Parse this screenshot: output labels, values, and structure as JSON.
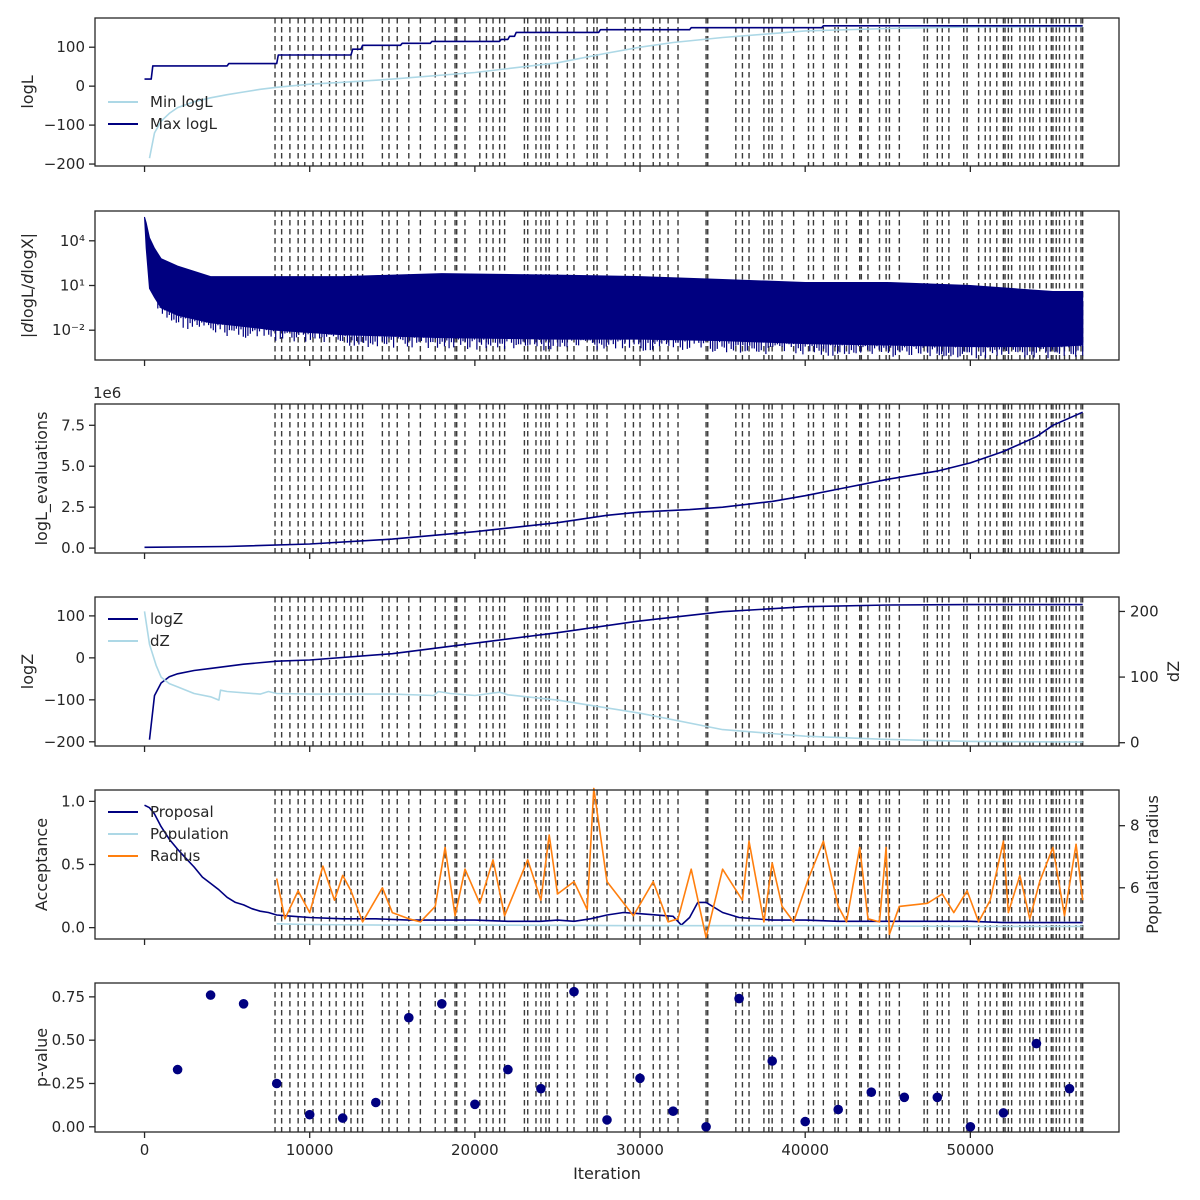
{
  "chart_data": {
    "type": "line",
    "x_label": "Iteration",
    "x_range": [
      -3000,
      59000
    ],
    "x_ticks": [
      0,
      10000,
      20000,
      30000,
      40000,
      50000
    ],
    "x_tick_labels": [
      "0",
      "10000",
      "20000",
      "30000",
      "40000",
      "50000"
    ],
    "grid": false,
    "colors": {
      "navy": "#000080",
      "light_blue": "#add8e6",
      "orange": "#ff7f0e",
      "vline": "#3a3a3a",
      "axis": "#262626"
    },
    "vlines": [
      7900,
      8300,
      8800,
      9300,
      9700,
      10200,
      10700,
      11200,
      11600,
      12100,
      12500,
      12900,
      13200,
      14400,
      14800,
      15300,
      16000,
      16700,
      17600,
      18200,
      18800,
      18900,
      19400,
      20300,
      20700,
      21100,
      21500,
      21800,
      23000,
      23200,
      23700,
      24000,
      24300,
      24500,
      25000,
      25600,
      26000,
      26800,
      27200,
      27400,
      28000,
      29100,
      29600,
      30000,
      30800,
      31200,
      31700,
      32300,
      34000,
      34100,
      35800,
      36200,
      36600,
      37500,
      37800,
      38000,
      38600,
      39300,
      40200,
      40500,
      41100,
      41800,
      42000,
      42500,
      43300,
      43400,
      43800,
      44500,
      44900,
      45100,
      45700,
      47200,
      47400,
      48000,
      48300,
      48700,
      49600,
      49800,
      50500,
      50900,
      51200,
      51600,
      52000,
      52100,
      52300,
      52500,
      53000,
      53300,
      53600,
      53800,
      54200,
      54600,
      54900,
      55000,
      55200,
      55400,
      55700,
      56000,
      56400,
      56700,
      56800
    ],
    "panels": [
      {
        "name": "logl",
        "ylabel": "logL",
        "y_range": [
          -205,
          175
        ],
        "y_ticks": [
          -200,
          -100,
          0,
          100
        ],
        "y_tick_labels": [
          "−200",
          "−100",
          "0",
          "100"
        ],
        "legend": {
          "position": "lower-left",
          "entries": [
            "Min logL",
            "Max logL"
          ]
        },
        "series": [
          {
            "name": "Min logL",
            "color_key": "light_blue",
            "x": [
              300,
              600,
              1000,
              1500,
              2000,
              3000,
              4000,
              5000,
              6000,
              7000,
              8000,
              10000,
              12000,
              15000,
              20000,
              25000,
              28000,
              30000,
              32000,
              35000,
              38000,
              40000,
              45000,
              50000,
              55000,
              56800
            ],
            "y": [
              -185,
              -120,
              -90,
              -70,
              -55,
              -40,
              -30,
              -22,
              -15,
              -8,
              -3,
              5,
              10,
              18,
              35,
              60,
              85,
              100,
              112,
              125,
              135,
              142,
              148,
              152,
              153,
              153
            ]
          },
          {
            "name": "Max logL",
            "color_key": "navy",
            "x": [
              0,
              400,
              500,
              5000,
              5100,
              8000,
              8100,
              12500,
              12600,
              13100,
              13200,
              15500,
              15600,
              17300,
              17400,
              21500,
              21600,
              22000,
              22100,
              22400,
              22500,
              27500,
              27600,
              33000,
              33100,
              41000,
              41100,
              56800
            ],
            "y": [
              18,
              18,
              52,
              52,
              58,
              58,
              80,
              80,
              95,
              95,
              105,
              105,
              110,
              110,
              115,
              115,
              120,
              120,
              128,
              128,
              138,
              138,
              145,
              145,
              150,
              150,
              155,
              155
            ]
          }
        ]
      },
      {
        "name": "dlogl",
        "ylabel": "|dlogL/dlogX|",
        "scale": "log",
        "y_range_log10": [
          -4.0,
          6.0
        ],
        "y_ticks_log10": [
          -2,
          1,
          4
        ],
        "y_tick_labels": [
          "10⁻²",
          "10¹",
          "10⁴"
        ],
        "series": [
          {
            "name": "|dlogL/dlogX| upper envelope",
            "color_key": "navy",
            "x": [
              0,
              100,
              300,
              600,
              1000,
              2000,
              4000,
              8000,
              12000,
              18000,
              25000,
              30000,
              35000,
              40000,
              45000,
              50000,
              55000,
              56800
            ],
            "y_log10": [
              5.6,
              5.2,
              4.2,
              3.5,
              2.8,
              2.3,
              1.6,
              1.6,
              1.6,
              1.8,
              1.7,
              1.6,
              1.4,
              1.2,
              1.2,
              1.0,
              0.6,
              0.6
            ]
          },
          {
            "name": "|dlogL/dlogX| lower envelope",
            "color_key": "navy",
            "x": [
              0,
              100,
              300,
              600,
              1000,
              2000,
              4000,
              8000,
              12000,
              18000,
              25000,
              30000,
              35000,
              40000,
              45000,
              50000,
              55000,
              56800
            ],
            "y_log10": [
              5.6,
              3.5,
              0.8,
              0.2,
              -0.5,
              -1.0,
              -1.5,
              -2.0,
              -2.3,
              -2.5,
              -2.6,
              -2.6,
              -2.7,
              -2.9,
              -3.0,
              -3.1,
              -3.1,
              -3.0
            ]
          }
        ]
      },
      {
        "name": "evals",
        "ylabel": "logL_evaluations",
        "offset_text": "1e6",
        "y_range": [
          -0.3,
          8.8
        ],
        "y_ticks": [
          0.0,
          2.5,
          5.0,
          7.5
        ],
        "y_tick_labels": [
          "0.0",
          "2.5",
          "5.0",
          "7.5"
        ],
        "series": [
          {
            "name": "logL_evaluations",
            "color_key": "navy",
            "x": [
              0,
              5000,
              10000,
              15000,
              20000,
              25000,
              28000,
              30000,
              33000,
              35000,
              38000,
              40000,
              42000,
              45000,
              48000,
              50000,
              52000,
              54000,
              55000,
              56800
            ],
            "y": [
              0.05,
              0.1,
              0.25,
              0.55,
              1.0,
              1.55,
              2.0,
              2.2,
              2.35,
              2.5,
              2.85,
              3.2,
              3.6,
              4.2,
              4.7,
              5.2,
              5.9,
              6.8,
              7.5,
              8.3
            ]
          }
        ]
      },
      {
        "name": "logz",
        "ylabel": "logZ",
        "y_range": [
          -210,
          145
        ],
        "y_ticks": [
          -200,
          -100,
          0,
          100
        ],
        "y_tick_labels": [
          "−200",
          "−100",
          "0",
          "100"
        ],
        "ylabel_right": "dZ",
        "y2_range": [
          -5,
          222
        ],
        "y2_ticks": [
          0,
          100,
          200
        ],
        "y2_tick_labels": [
          "0",
          "100",
          "200"
        ],
        "legend": {
          "position": "top-left",
          "entries": [
            "logZ",
            "dZ"
          ]
        },
        "series": [
          {
            "name": "logZ",
            "color_key": "navy",
            "axis": "left",
            "x": [
              300,
              600,
              1000,
              1500,
              2000,
              3000,
              4000,
              6000,
              8000,
              10000,
              15000,
              20000,
              25000,
              30000,
              35000,
              40000,
              45000,
              50000,
              56800
            ],
            "y": [
              -195,
              -90,
              -60,
              -45,
              -38,
              -30,
              -25,
              -15,
              -8,
              -5,
              10,
              35,
              60,
              88,
              110,
              122,
              126,
              127,
              127
            ]
          },
          {
            "name": "dZ",
            "color_key": "light_blue",
            "axis": "right",
            "x": [
              0,
              300,
              700,
              1000,
              1500,
              2000,
              3000,
              4000,
              4500,
              4600,
              5000,
              7000,
              7500,
              8000,
              10000,
              15000,
              17500,
              17800,
              18500,
              20000,
              21500,
              22000,
              25000,
              30000,
              35000,
              40000,
              45000,
              50000,
              56800
            ],
            "y": [
              200,
              150,
              118,
              100,
              90,
              85,
              75,
              70,
              65,
              80,
              78,
              74,
              78,
              75,
              74,
              74,
              72,
              78,
              75,
              72,
              77,
              73,
              65,
              45,
              20,
              10,
              5,
              2,
              1
            ]
          }
        ]
      },
      {
        "name": "acceptance",
        "ylabel": "Acceptance",
        "y_range": [
          -0.09,
          1.09
        ],
        "y_ticks": [
          0.0,
          0.5,
          1.0
        ],
        "y_tick_labels": [
          "0.0",
          "0.5",
          "1.0"
        ],
        "ylabel_right": "Population radius",
        "y2_range": [
          4.35,
          9.15
        ],
        "y2_ticks": [
          6,
          8
        ],
        "y2_tick_labels": [
          "6",
          "8"
        ],
        "legend": {
          "position": "top-left",
          "entries": [
            "Proposal",
            "Population",
            "Radius"
          ]
        },
        "series": [
          {
            "name": "Proposal",
            "color_key": "navy",
            "axis": "left",
            "x": [
              0,
              300,
              600,
              1000,
              1500,
              2000,
              2500,
              3000,
              3500,
              4000,
              4500,
              5000,
              5500,
              6000,
              6500,
              7000,
              7500,
              8000,
              9000,
              10000,
              12000,
              14000,
              16000,
              18000,
              20000,
              22000,
              24000,
              25000,
              26000,
              27000,
              28000,
              29000,
              30000,
              32000,
              32500,
              33000,
              33500,
              34000,
              35000,
              36000,
              38000,
              40000,
              42000,
              45000,
              48000,
              50000,
              52000,
              54000,
              56800
            ],
            "y": [
              0.97,
              0.95,
              0.9,
              0.8,
              0.7,
              0.62,
              0.55,
              0.48,
              0.4,
              0.35,
              0.3,
              0.24,
              0.2,
              0.18,
              0.15,
              0.13,
              0.12,
              0.1,
              0.09,
              0.08,
              0.07,
              0.07,
              0.06,
              0.06,
              0.06,
              0.05,
              0.05,
              0.06,
              0.05,
              0.07,
              0.1,
              0.12,
              0.11,
              0.09,
              0.02,
              0.08,
              0.2,
              0.2,
              0.12,
              0.08,
              0.06,
              0.06,
              0.05,
              0.05,
              0.05,
              0.05,
              0.04,
              0.04,
              0.04
            ]
          },
          {
            "name": "Population",
            "color_key": "light_blue",
            "axis": "left",
            "x": [
              8000,
              10000,
              15000,
              20000,
              30000,
              40000,
              50000,
              56800
            ],
            "y": [
              0.03,
              0.025,
              0.02,
              0.02,
              0.015,
              0.015,
              0.01,
              0.01
            ]
          },
          {
            "name": "Radius",
            "color_key": "orange",
            "axis": "right",
            "x": [
              8000,
              8500,
              9300,
              10000,
              10800,
              11500,
              12000,
              12500,
              13200,
              14400,
              15000,
              16000,
              16700,
              17600,
              18200,
              18800,
              19400,
              20300,
              21100,
              21800,
              23200,
              24000,
              24500,
              25000,
              26000,
              26800,
              27200,
              28000,
              29600,
              30800,
              31700,
              32300,
              33100,
              34000,
              35000,
              36200,
              36600,
              37500,
              38000,
              38600,
              39300,
              40200,
              41100,
              42000,
              42500,
              43300,
              43800,
              44500,
              44900,
              45100,
              45700,
              47400,
              48300,
              49000,
              49800,
              50500,
              51200,
              52000,
              52300,
              53000,
              53600,
              54200,
              55000,
              55700,
              56400,
              56800
            ],
            "y": [
              6.3,
              5.0,
              5.9,
              5.2,
              6.7,
              5.6,
              6.4,
              5.9,
              4.9,
              6.0,
              5.2,
              5.0,
              4.9,
              5.4,
              7.3,
              5.1,
              6.6,
              5.5,
              6.9,
              5.1,
              6.9,
              5.6,
              7.7,
              5.8,
              6.2,
              5.3,
              9.2,
              6.2,
              5.1,
              6.2,
              4.9,
              5.0,
              6.6,
              4.4,
              6.6,
              5.6,
              7.5,
              4.9,
              6.8,
              5.4,
              4.9,
              6.3,
              7.5,
              5.4,
              4.9,
              7.3,
              5.0,
              4.9,
              7.3,
              4.5,
              5.4,
              5.5,
              5.8,
              5.2,
              5.9,
              4.9,
              5.6,
              7.5,
              5.2,
              6.4,
              5.0,
              6.2,
              7.3,
              5.1,
              7.4,
              5.6
            ]
          }
        ]
      },
      {
        "name": "pvalue",
        "ylabel": "p-value",
        "y_range": [
          -0.03,
          0.83
        ],
        "y_ticks": [
          0.0,
          0.25,
          0.5,
          0.75
        ],
        "y_tick_labels": [
          "0.00",
          "0.25",
          "0.50",
          "0.75"
        ],
        "series": [
          {
            "name": "p-value",
            "type": "scatter",
            "color_key": "navy",
            "x": [
              2000,
              4000,
              6000,
              8000,
              10000,
              12000,
              14000,
              16000,
              18000,
              20000,
              22000,
              24000,
              26000,
              28000,
              30000,
              32000,
              34000,
              36000,
              38000,
              40000,
              42000,
              44000,
              46000,
              48000,
              50000,
              52000,
              54000,
              56000
            ],
            "y": [
              0.33,
              0.76,
              0.71,
              0.25,
              0.07,
              0.05,
              0.14,
              0.63,
              0.71,
              0.13,
              0.33,
              0.22,
              0.78,
              0.04,
              0.28,
              0.09,
              0.0,
              0.74,
              0.38,
              0.03,
              0.1,
              0.2,
              0.17,
              0.17,
              0.0,
              0.08,
              0.48,
              0.22
            ]
          }
        ]
      }
    ]
  }
}
